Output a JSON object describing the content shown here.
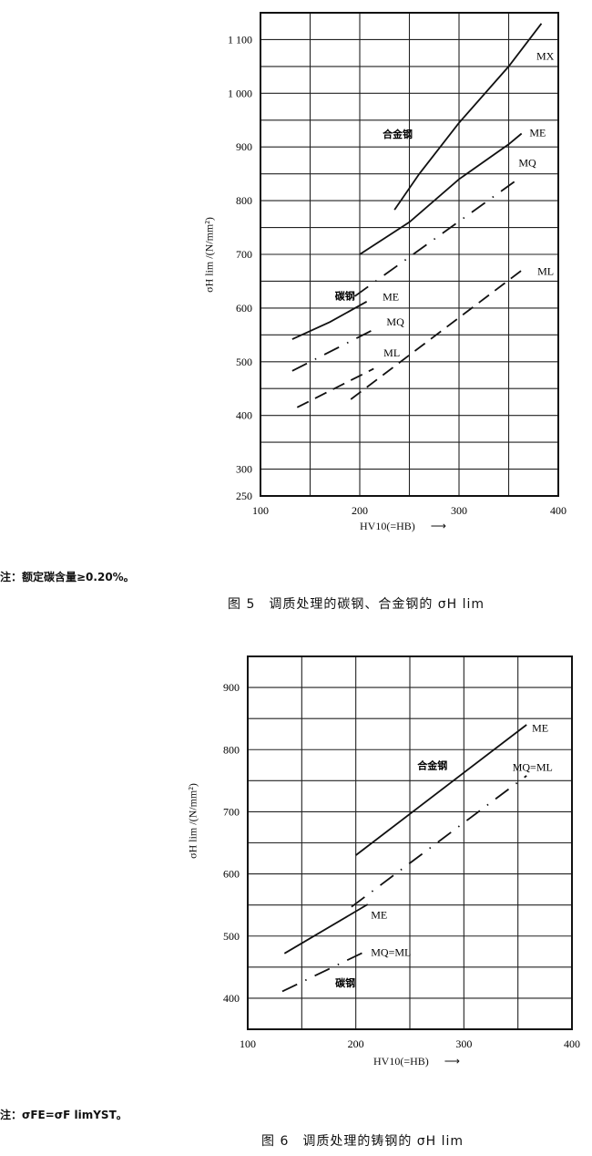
{
  "chart_data": [
    {
      "type": "line",
      "xlabel": "HV10(=HB)",
      "ylabel": "σH lim /(N/mm²)",
      "xlim": [
        100,
        400
      ],
      "ylim": [
        250,
        1150
      ],
      "grid": true,
      "x_ticks": [
        "100",
        "200",
        "300",
        "400"
      ],
      "y_ticks": [
        {
          "value": 250,
          "label": "250"
        },
        {
          "value": 300,
          "label": "300"
        },
        {
          "value": 400,
          "label": "400"
        },
        {
          "value": 500,
          "label": "500"
        },
        {
          "value": 600,
          "label": "600"
        },
        {
          "value": 700,
          "label": "700"
        },
        {
          "value": 800,
          "label": "800"
        },
        {
          "value": 900,
          "label": "900"
        },
        {
          "value": 1000,
          "label": "1 000"
        },
        {
          "value": 1100,
          "label": "1 100"
        }
      ],
      "series": [
        {
          "name": "MX",
          "group": "合金钢",
          "style": "solid",
          "x": [
            235,
            260,
            300,
            350,
            383
          ],
          "y": [
            783,
            850,
            945,
            1050,
            1130
          ]
        },
        {
          "name": "ME",
          "group": "合金钢",
          "style": "solid",
          "x": [
            200,
            250,
            300,
            350,
            363
          ],
          "y": [
            700,
            760,
            840,
            905,
            925
          ]
        },
        {
          "name": "MQ",
          "group": "合金钢",
          "style": "dashdot",
          "x": [
            195,
            363
          ],
          "y": [
            622,
            845
          ]
        },
        {
          "name": "ML",
          "group": "合金钢",
          "style": "dashed",
          "x": [
            191,
            363
          ],
          "y": [
            430,
            670
          ]
        },
        {
          "name": "ME",
          "group": "碳钢",
          "style": "solid",
          "x": [
            132,
            170,
            207
          ],
          "y": [
            542,
            574,
            612
          ]
        },
        {
          "name": "MQ",
          "group": "碳钢",
          "style": "dashdot",
          "x": [
            132,
            214
          ],
          "y": [
            483,
            560
          ]
        },
        {
          "name": "ML",
          "group": "碳钢",
          "style": "dashed",
          "x": [
            137,
            214
          ],
          "y": [
            415,
            487
          ]
        }
      ],
      "annotations": [
        {
          "text": "MX",
          "x": 378,
          "y": 1069
        },
        {
          "text": "ME",
          "x": 371,
          "y": 927
        },
        {
          "text": "MQ",
          "x": 360,
          "y": 871
        },
        {
          "text": "ML",
          "x": 379,
          "y": 669
        },
        {
          "text": "合金钢",
          "x": 223,
          "y": 924
        },
        {
          "text": "碳钢",
          "x": 175,
          "y": 623
        },
        {
          "text": "ME",
          "x": 223,
          "y": 621
        },
        {
          "text": "MQ",
          "x": 227,
          "y": 574
        },
        {
          "text": "ML",
          "x": 224,
          "y": 517
        }
      ]
    },
    {
      "type": "line",
      "xlabel": "HV10(=HB)",
      "ylabel": "σH lim /(N/mm²)",
      "xlim": [
        100,
        400
      ],
      "ylim": [
        350,
        950
      ],
      "grid": true,
      "x_ticks": [
        "100",
        "200",
        "300",
        "400"
      ],
      "y_ticks": [
        {
          "value": 400,
          "label": "400"
        },
        {
          "value": 500,
          "label": "500"
        },
        {
          "value": 600,
          "label": "600"
        },
        {
          "value": 700,
          "label": "700"
        },
        {
          "value": 800,
          "label": "800"
        },
        {
          "value": 900,
          "label": "900"
        }
      ],
      "series": [
        {
          "name": "ME",
          "group": "合金钢",
          "style": "solid",
          "x": [
            200,
            358
          ],
          "y": [
            630,
            840
          ]
        },
        {
          "name": "MQ=ML",
          "group": "合金钢",
          "style": "dashdot",
          "x": [
            196,
            358
          ],
          "y": [
            547,
            758
          ]
        },
        {
          "name": "ME",
          "group": "碳钢",
          "style": "solid",
          "x": [
            134,
            211
          ],
          "y": [
            472,
            551
          ]
        },
        {
          "name": "MQ=ML",
          "group": "碳钢",
          "style": "dashdot",
          "x": [
            132,
            211
          ],
          "y": [
            411,
            477
          ]
        }
      ],
      "annotations": [
        {
          "text": "ME",
          "x": 363,
          "y": 835
        },
        {
          "text": "合金钢",
          "x": 257,
          "y": 775
        },
        {
          "text": "MQ=ML",
          "x": 345,
          "y": 772
        },
        {
          "text": "ME",
          "x": 214,
          "y": 534
        },
        {
          "text": "MQ=ML",
          "x": 214,
          "y": 474
        },
        {
          "text": "碳钢",
          "x": 181,
          "y": 425
        }
      ]
    }
  ],
  "figure5": {
    "note": "注：额定碳含量≥0.20%。",
    "caption": "图 5　调质处理的碳钢、合金钢的 σH lim",
    "ylabel": "σH lim /(N/mm²)",
    "xlabel": "HV10(=HB)"
  },
  "figure6": {
    "note": "注：σFE=σF limYST。",
    "caption": "图 6　调质处理的铸钢的 σH lim",
    "ylabel": "σH lim /(N/mm²)",
    "xlabel": "HV10(=HB)"
  }
}
